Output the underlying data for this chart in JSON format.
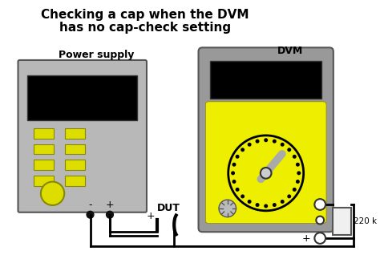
{
  "title_line1": "Checking a cap when the DVM",
  "title_line2": "has no cap-check setting",
  "label_dvm": "DVM",
  "label_power_supply": "Power supply",
  "label_dut": "DUT",
  "label_resistor": "220 k",
  "label_minus": "-",
  "label_plus_ps": "+",
  "label_plus_dut": "+",
  "label_plus_dvm": "+",
  "bg_color": "#ffffff",
  "ps_body_color": "#b8b8b8",
  "ps_screen_color": "#000000",
  "ps_button_color": "#dddd00",
  "ps_knob_color": "#dddd00",
  "dvm_outer_color": "#999999",
  "dvm_body_color": "#eeee00",
  "dvm_screen_color": "#000000",
  "dvm_dial_bg": "#eeee00",
  "dvm_dial_ring": "#000000",
  "dvm_dial_needle": "#aaaaaa",
  "wire_color": "#000000",
  "resistor_color": "#f0f0f0",
  "title_fontsize": 11,
  "label_fontsize": 9
}
